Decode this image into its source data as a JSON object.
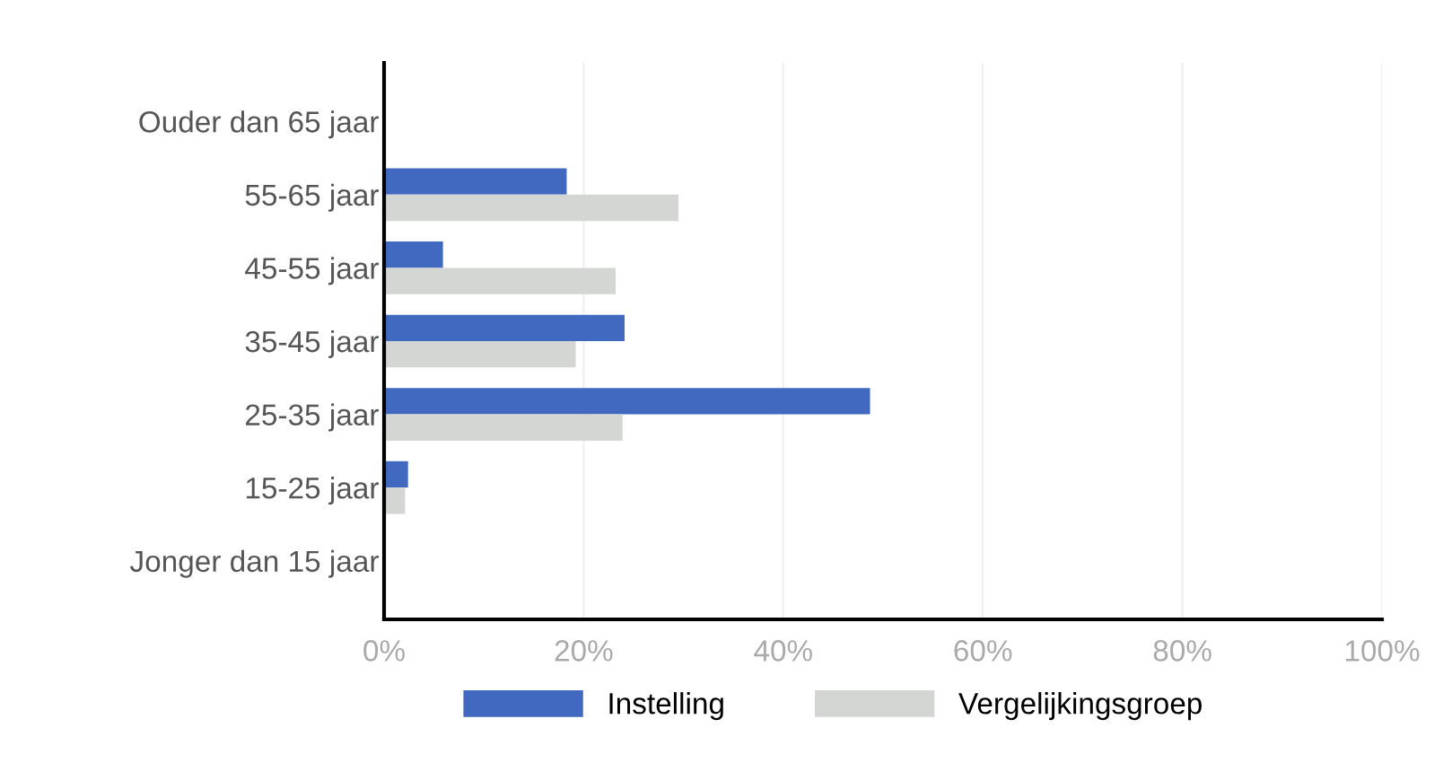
{
  "chart_data": {
    "type": "bar",
    "orientation": "horizontal",
    "categories": [
      "Ouder dan 65 jaar",
      "55-65 jaar",
      "45-55 jaar",
      "35-45 jaar",
      "25-35 jaar",
      "15-25 jaar",
      "Jonger dan 15 jaar"
    ],
    "series": [
      {
        "name": "Instelling",
        "color": "#4169c0",
        "values": [
          0,
          18.3,
          5.9,
          24.1,
          48.7,
          2.4,
          0
        ]
      },
      {
        "name": "Vergelijkingsgroep",
        "color": "#d3d6d3",
        "values": [
          0,
          29.5,
          23.2,
          19.2,
          23.9,
          2.1,
          0
        ]
      }
    ],
    "xlim": [
      0,
      100
    ],
    "xticks": [
      {
        "value": 0,
        "label": "0%"
      },
      {
        "value": 20,
        "label": "20%"
      },
      {
        "value": 40,
        "label": "40%"
      },
      {
        "value": 60,
        "label": "60%"
      },
      {
        "value": 80,
        "label": "80%"
      },
      {
        "value": 100,
        "label": "100%"
      }
    ],
    "grid": "x",
    "legend": "bottom"
  }
}
